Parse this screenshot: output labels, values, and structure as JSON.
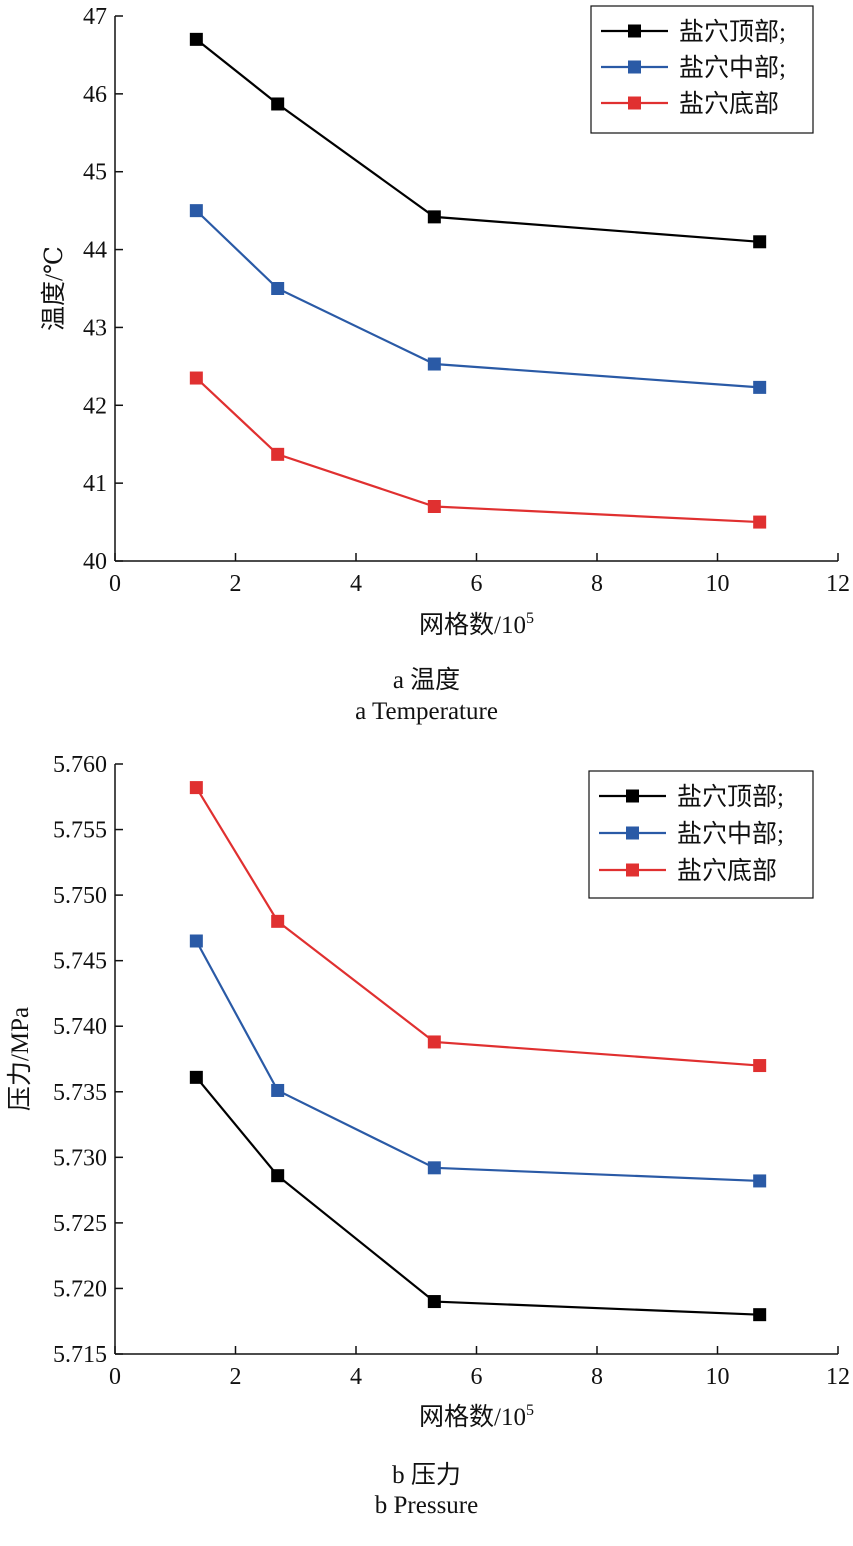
{
  "chart_data": [
    {
      "type": "line",
      "xlabel": "网格数/10",
      "xlabel_sup": "5",
      "ylabel": "温度/℃",
      "xlim": [
        0,
        12
      ],
      "ylim": [
        40,
        47
      ],
      "x_ticks": [
        "0",
        "2",
        "4",
        "6",
        "8",
        "10",
        "12"
      ],
      "y_ticks": [
        "40",
        "41",
        "42",
        "43",
        "44",
        "45",
        "46",
        "47"
      ],
      "x": [
        1.35,
        2.7,
        5.3,
        10.7
      ],
      "series": [
        {
          "name": "盐穴顶部;",
          "color": "#000000",
          "values": [
            46.7,
            45.87,
            44.42,
            44.1
          ]
        },
        {
          "name": "盐穴中部;",
          "color": "#2a5aa6",
          "values": [
            44.5,
            43.5,
            42.53,
            42.23
          ]
        },
        {
          "name": "盐穴底部",
          "color": "#e03030",
          "values": [
            42.35,
            41.37,
            40.7,
            40.5
          ]
        }
      ],
      "legend": "top-right",
      "grid": false,
      "caption_zh": "a  温度",
      "caption_en": "a  Temperature"
    },
    {
      "type": "line",
      "xlabel": "网格数/10",
      "xlabel_sup": "5",
      "ylabel": "压力/MPa",
      "xlim": [
        0,
        12
      ],
      "ylim": [
        5.715,
        5.76
      ],
      "x_ticks": [
        "0",
        "2",
        "4",
        "6",
        "8",
        "10",
        "12"
      ],
      "y_ticks": [
        "5.715",
        "5.720",
        "5.725",
        "5.730",
        "5.735",
        "5.740",
        "5.745",
        "5.750",
        "5.755",
        "5.760"
      ],
      "x": [
        1.35,
        2.7,
        5.3,
        10.7
      ],
      "series": [
        {
          "name": "盐穴顶部;",
          "color": "#000000",
          "values": [
            5.7361,
            5.7286,
            5.719,
            5.718
          ]
        },
        {
          "name": "盐穴中部;",
          "color": "#2a5aa6",
          "values": [
            5.7465,
            5.7351,
            5.7292,
            5.7282
          ]
        },
        {
          "name": "盐穴底部",
          "color": "#e03030",
          "values": [
            5.7582,
            5.748,
            5.7388,
            5.737
          ]
        }
      ],
      "legend": "top-right",
      "grid": false,
      "caption_zh": "b  压力",
      "caption_en": "b  Pressure"
    }
  ]
}
